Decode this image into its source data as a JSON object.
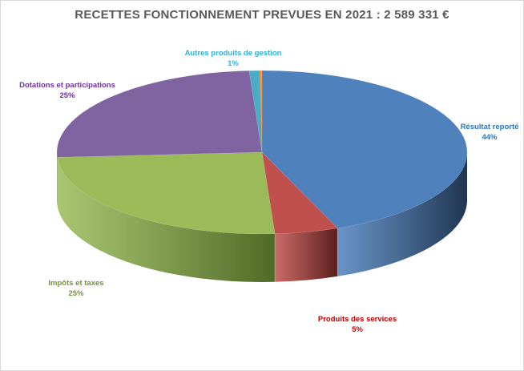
{
  "chart_data": {
    "type": "pie",
    "title": "RECETTES FONCTIONNEMENT PREVUES EN 2021 : 2 589 331 €",
    "slices": [
      {
        "label": "Résultat reporté",
        "value": 44,
        "pct_label": "44%",
        "color": "#4f81bd",
        "side": "#1f3550",
        "label_color": "#2e75b6"
      },
      {
        "label": "Produits des services",
        "value": 5,
        "pct_label": "5%",
        "color": "#c0504d",
        "side": "#5a1f1c",
        "label_color": "#c00000"
      },
      {
        "label": "Impôts et taxes",
        "value": 25,
        "pct_label": "25%",
        "color": "#9bbb59",
        "side": "#4e6a26",
        "label_color": "#77933c"
      },
      {
        "label": "Dotations et participations",
        "value": 25,
        "pct_label": "25%",
        "color": "#8064a2",
        "side": "#3e2d55",
        "label_color": "#7030a0"
      },
      {
        "label": "Autres produits de gestion",
        "value": 1,
        "pct_label": "1%",
        "color": "#4bacc6",
        "side": "#1d5a6b",
        "label_color": "#31b0d5"
      }
    ]
  }
}
